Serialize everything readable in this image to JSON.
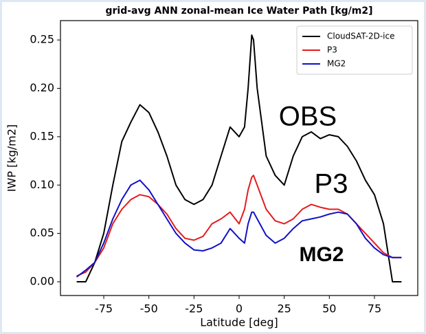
{
  "chart_data": {
    "type": "line",
    "title": "grid-avg ANN zonal-mean Ice Water Path [kg/m2]",
    "xlabel": "Latitude [deg]",
    "ylabel": "IWP [kg/m2]",
    "x": [
      -90,
      -85,
      -80,
      -75,
      -70,
      -65,
      -60,
      -55,
      -50,
      -45,
      -40,
      -35,
      -30,
      -25,
      -20,
      -15,
      -10,
      -5,
      0,
      3,
      5,
      7,
      8,
      10,
      15,
      20,
      25,
      30,
      35,
      40,
      45,
      50,
      55,
      60,
      65,
      70,
      75,
      80,
      85,
      90
    ],
    "series": [
      {
        "name": "CloudSAT-2D-ice",
        "color": "#000000",
        "values": [
          0,
          0,
          0.02,
          0.05,
          0.1,
          0.145,
          0.165,
          0.183,
          0.175,
          0.155,
          0.13,
          0.1,
          0.085,
          0.08,
          0.085,
          0.1,
          0.13,
          0.16,
          0.15,
          0.16,
          0.2,
          0.255,
          0.25,
          0.2,
          0.13,
          0.11,
          0.1,
          0.13,
          0.15,
          0.155,
          0.148,
          0.152,
          0.15,
          0.14,
          0.125,
          0.105,
          0.09,
          0.06,
          0,
          0
        ]
      },
      {
        "name": "P3",
        "color": "#e41a1c",
        "values": [
          0.006,
          0.01,
          0.02,
          0.035,
          0.06,
          0.075,
          0.085,
          0.09,
          0.088,
          0.08,
          0.07,
          0.055,
          0.045,
          0.043,
          0.047,
          0.06,
          0.065,
          0.072,
          0.06,
          0.075,
          0.095,
          0.108,
          0.11,
          0.1,
          0.075,
          0.063,
          0.06,
          0.065,
          0.075,
          0.08,
          0.077,
          0.075,
          0.075,
          0.07,
          0.06,
          0.05,
          0.04,
          0.03,
          0.025,
          0.025
        ]
      },
      {
        "name": "MG2",
        "color": "#1010c8",
        "values": [
          0.005,
          0.012,
          0.02,
          0.04,
          0.065,
          0.085,
          0.1,
          0.105,
          0.095,
          0.08,
          0.065,
          0.05,
          0.04,
          0.033,
          0.032,
          0.035,
          0.04,
          0.055,
          0.045,
          0.04,
          0.06,
          0.072,
          0.072,
          0.065,
          0.048,
          0.04,
          0.045,
          0.055,
          0.063,
          0.065,
          0.067,
          0.07,
          0.072,
          0.07,
          0.06,
          0.045,
          0.035,
          0.028,
          0.025,
          0.025
        ]
      }
    ],
    "xlim": [
      -99,
      99
    ],
    "ylim": [
      -0.0142,
      0.27
    ],
    "xticks": [
      -75,
      -50,
      -25,
      0,
      25,
      50,
      75
    ],
    "yticks": [
      {
        "value": 0,
        "label": "0.00"
      },
      {
        "value": 0.05,
        "label": "0.05"
      },
      {
        "value": 0.1,
        "label": "0.10"
      },
      {
        "value": 0.15,
        "label": "0.15"
      },
      {
        "value": 0.2,
        "label": "0.20"
      },
      {
        "value": 0.25,
        "label": "0.25"
      }
    ],
    "legend": "upper right",
    "annotations": [
      {
        "text": "OBS",
        "color": "#000000"
      },
      {
        "text": "P3",
        "color": "#e03030"
      },
      {
        "text": "MG2",
        "color": "#1f3f7f"
      }
    ]
  }
}
